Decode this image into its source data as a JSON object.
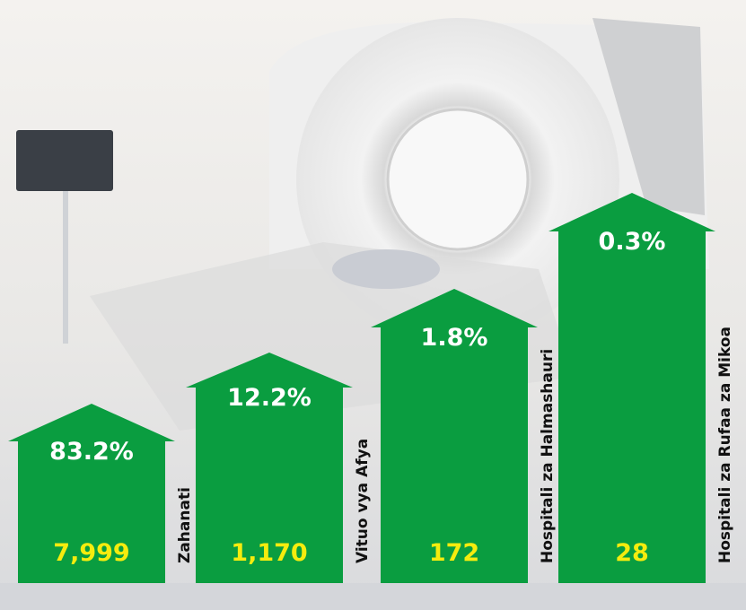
{
  "items": [
    {
      "percent": "83.2%",
      "count": "7,999",
      "label": "Zahanati"
    },
    {
      "percent": "12.2%",
      "count": "1,170",
      "label": "Vituo vya Afya"
    },
    {
      "percent": "1.8%",
      "count": "172",
      "label": "Hospitali za Halmashauri"
    },
    {
      "percent": "0.3%",
      "count": "28",
      "label": "Hospitali za Rufaa za Mikoa"
    }
  ]
}
